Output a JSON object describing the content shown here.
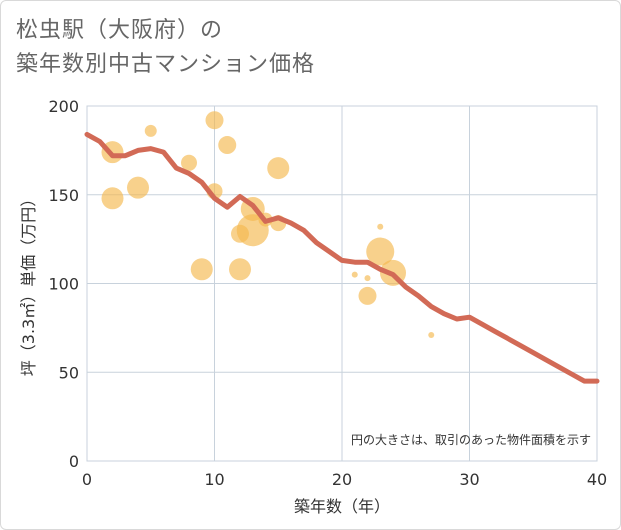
{
  "title_line1": "松虫駅（大阪府）の",
  "title_line2": "築年数別中古マンション価格",
  "colors": {
    "bubble": "#f5b94e",
    "line": "#d26a56",
    "grid": "#c8d2dc",
    "plot_border": "#c8d2dc"
  },
  "chart_data": {
    "type": "scatter",
    "xlabel": "築年数（年）",
    "ylabel": "坪（3.3㎡）単価（万円）",
    "xlim": [
      0,
      40
    ],
    "ylim": [
      0,
      200
    ],
    "x_ticks": [
      "0",
      "10",
      "20",
      "30",
      "40"
    ],
    "y_ticks": [
      "0",
      "50",
      "100",
      "150",
      "200"
    ],
    "note": "円の大きさは、取引のあった物件面積を示す",
    "bubbles": [
      {
        "x": 2,
        "y": 174,
        "size": 11
      },
      {
        "x": 2,
        "y": 148,
        "size": 11
      },
      {
        "x": 4,
        "y": 154,
        "size": 11
      },
      {
        "x": 5,
        "y": 186,
        "size": 6
      },
      {
        "x": 8,
        "y": 168,
        "size": 8
      },
      {
        "x": 9,
        "y": 108,
        "size": 11
      },
      {
        "x": 10,
        "y": 192,
        "size": 9
      },
      {
        "x": 10,
        "y": 152,
        "size": 8
      },
      {
        "x": 11,
        "y": 178,
        "size": 9
      },
      {
        "x": 12,
        "y": 128,
        "size": 9
      },
      {
        "x": 12,
        "y": 108,
        "size": 11
      },
      {
        "x": 13,
        "y": 142,
        "size": 12
      },
      {
        "x": 13,
        "y": 130,
        "size": 16
      },
      {
        "x": 14,
        "y": 136,
        "size": 7
      },
      {
        "x": 15,
        "y": 165,
        "size": 11
      },
      {
        "x": 15,
        "y": 134,
        "size": 8
      },
      {
        "x": 21,
        "y": 105,
        "size": 3
      },
      {
        "x": 22,
        "y": 103,
        "size": 3
      },
      {
        "x": 22,
        "y": 93,
        "size": 9
      },
      {
        "x": 23,
        "y": 132,
        "size": 3
      },
      {
        "x": 23,
        "y": 118,
        "size": 14
      },
      {
        "x": 24,
        "y": 106,
        "size": 13
      },
      {
        "x": 27,
        "y": 71,
        "size": 3
      }
    ],
    "series": [
      {
        "x": [
          0,
          1,
          2,
          3,
          4,
          5,
          6,
          7,
          8,
          9,
          10,
          11,
          12,
          13,
          14,
          15,
          16,
          17,
          18,
          19,
          20,
          21,
          22,
          23,
          24,
          25,
          26,
          27,
          28,
          29,
          30,
          31,
          32,
          33,
          34,
          35,
          36,
          37,
          38,
          39,
          40
        ],
        "values": [
          184,
          180,
          172,
          172,
          175,
          176,
          174,
          165,
          162,
          157,
          148,
          143,
          149,
          144,
          135,
          137,
          134,
          130,
          123,
          118,
          113,
          112,
          112,
          108,
          105,
          98,
          93,
          87,
          83,
          80,
          81,
          77,
          73,
          69,
          65,
          61,
          57,
          53,
          49,
          45,
          45
        ]
      }
    ]
  }
}
